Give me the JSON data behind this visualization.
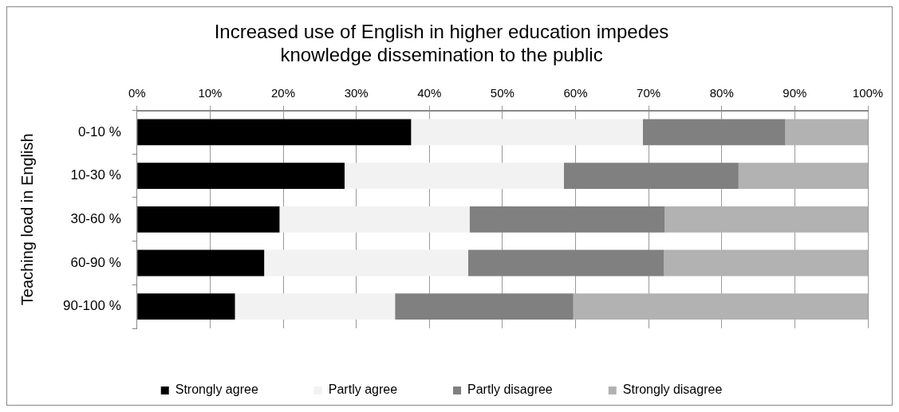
{
  "chart_data": {
    "type": "bar",
    "orientation": "horizontal",
    "stacked": true,
    "title": [
      "Increased use of English in higher education impedes",
      "knowledge dissemination to the public"
    ],
    "ylabel": "Teaching load in English",
    "categories": [
      "0-10 %",
      "10-30 %",
      "30-60 %",
      "60-90 %",
      "90-100 %"
    ],
    "series": [
      {
        "name": "Strongly agree",
        "color": "#000000",
        "values": [
          37.5,
          28.4,
          19.5,
          17.4,
          13.4
        ]
      },
      {
        "name": "Partly agree",
        "color": "#f2f2f2",
        "values": [
          31.7,
          30.0,
          26.0,
          27.9,
          21.9
        ]
      },
      {
        "name": "Partly disagree",
        "color": "#808080",
        "values": [
          19.5,
          23.9,
          26.7,
          26.8,
          24.4
        ]
      },
      {
        "name": "Strongly disagree",
        "color": "#b2b2b2",
        "values": [
          11.3,
          17.7,
          27.8,
          27.9,
          40.3
        ]
      }
    ],
    "xlim": [
      0,
      100
    ],
    "xticks": [
      {
        "value": 0,
        "label": "0%"
      },
      {
        "value": 10,
        "label": "10%"
      },
      {
        "value": 20,
        "label": "20%"
      },
      {
        "value": 30,
        "label": "30%"
      },
      {
        "value": 40,
        "label": "40%"
      },
      {
        "value": 50,
        "label": "50%"
      },
      {
        "value": 60,
        "label": "60%"
      },
      {
        "value": 70,
        "label": "70%"
      },
      {
        "value": 80,
        "label": "80%"
      },
      {
        "value": 90,
        "label": "90%"
      },
      {
        "value": 100,
        "label": "100%"
      }
    ],
    "grid": "x",
    "legend": "bottom"
  }
}
